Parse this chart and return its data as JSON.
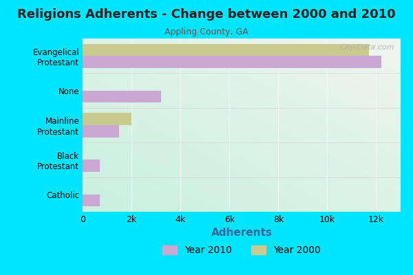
{
  "title": "Religions Adherents - Change between 2000 and 2010",
  "subtitle": "Appling County, GA",
  "xlabel": "Adherents",
  "categories": [
    "Evangelical\nProtestant",
    "None",
    "Mainline\nProtestant",
    "Black\nProtestant",
    "Catholic"
  ],
  "values_2010": [
    12200,
    3200,
    1500,
    700,
    700
  ],
  "values_2000": [
    11700,
    0,
    2000,
    0,
    0
  ],
  "color_2010": "#c9a8d4",
  "color_2000": "#c8ca8e",
  "background_outer": "#00e5ff",
  "background_inner_tl": "#c8f0e0",
  "background_inner_br": "#f0f5ee",
  "xlim": [
    0,
    13000
  ],
  "xticks": [
    0,
    2000,
    4000,
    6000,
    8000,
    10000,
    12000
  ],
  "xtick_labels": [
    "0",
    "2k",
    "4k",
    "6k",
    "8k",
    "10k",
    "12k"
  ],
  "bar_height": 0.35,
  "title_fontsize": 13,
  "subtitle_fontsize": 9,
  "xlabel_fontsize": 11,
  "legend_fontsize": 10,
  "watermark": "City-Data.com",
  "xlabel_color": "#336699",
  "title_color": "#222222",
  "subtitle_color": "#555555"
}
